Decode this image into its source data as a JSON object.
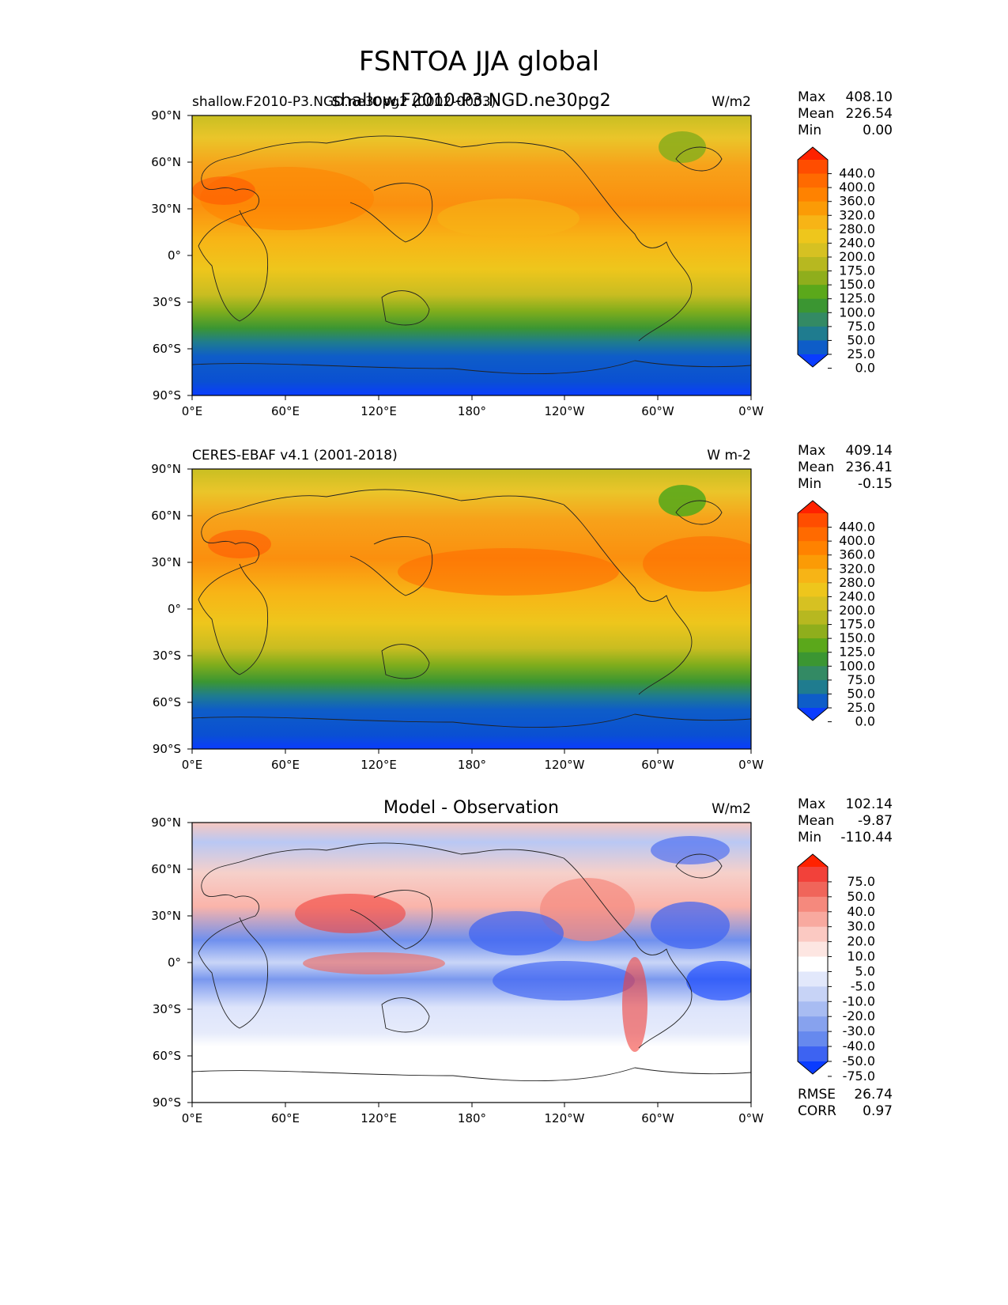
{
  "figure_title": "FSNTOA JJA global",
  "lat_ticks": [
    "90°N",
    "60°N",
    "30°N",
    "0°",
    "30°S",
    "60°S",
    "90°S"
  ],
  "lon_ticks": [
    "0°E",
    "60°E",
    "120°E",
    "180°",
    "120°W",
    "60°W",
    "0°W"
  ],
  "panels": [
    {
      "id": "model",
      "title_left": "shallow.F2010-P3.NGD.ne30pg2 (0002-0003)",
      "title_center": "shallow.F2010-P3.NGD.ne30pg2",
      "units": "W/m2",
      "stats": [
        {
          "label": "Max",
          "value": "408.10"
        },
        {
          "label": "Mean",
          "value": "226.54"
        },
        {
          "label": "Min",
          "value": "0.00"
        }
      ],
      "colorbar": {
        "levels": [
          "440.0",
          "400.0",
          "360.0",
          "320.0",
          "280.0",
          "240.0",
          "200.0",
          "175.0",
          "150.0",
          "125.0",
          "100.0",
          "75.0",
          "50.0",
          "25.0",
          "0.0"
        ],
        "colors": [
          "#ff2200",
          "#ff4d00",
          "#ff6a00",
          "#ff8200",
          "#fb9b06",
          "#f7b416",
          "#eec61c",
          "#d6c122",
          "#b7b820",
          "#8fae1c",
          "#5ba81b",
          "#3b9632",
          "#338a64",
          "#1f7c8f",
          "#0e5dc8",
          "#0a3cff"
        ]
      }
    },
    {
      "id": "obs",
      "title_left": "CERES-EBAF v4.1 (2001-2018)",
      "title_center": "",
      "units": "W m-2",
      "stats": [
        {
          "label": "Max",
          "value": "409.14"
        },
        {
          "label": "Mean",
          "value": "236.41"
        },
        {
          "label": "Min",
          "value": "-0.15"
        }
      ],
      "colorbar": {
        "levels": [
          "440.0",
          "400.0",
          "360.0",
          "320.0",
          "280.0",
          "240.0",
          "200.0",
          "175.0",
          "150.0",
          "125.0",
          "100.0",
          "75.0",
          "50.0",
          "25.0",
          "0.0"
        ],
        "colors": [
          "#ff2200",
          "#ff4d00",
          "#ff6a00",
          "#ff8200",
          "#fb9b06",
          "#f7b416",
          "#eec61c",
          "#d6c122",
          "#b7b820",
          "#8fae1c",
          "#5ba81b",
          "#3b9632",
          "#338a64",
          "#1f7c8f",
          "#0e5dc8",
          "#0a3cff"
        ]
      }
    },
    {
      "id": "diff",
      "title_left": "",
      "title_center": "Model - Observation",
      "units": "W/m2",
      "stats": [
        {
          "label": "Max",
          "value": "102.14"
        },
        {
          "label": "Mean",
          "value": "-9.87"
        },
        {
          "label": "Min",
          "value": "-110.44"
        }
      ],
      "extra_stats": [
        {
          "label": "RMSE",
          "value": "26.74"
        },
        {
          "label": "CORR",
          "value": "0.97"
        }
      ],
      "colorbar": {
        "levels": [
          "75.0",
          "50.0",
          "40.0",
          "30.0",
          "20.0",
          "10.0",
          "5.0",
          "-5.0",
          "-10.0",
          "-20.0",
          "-30.0",
          "-40.0",
          "-50.0",
          "-75.0"
        ],
        "colors": [
          "#ff2200",
          "#f2413a",
          "#f0655a",
          "#f5897d",
          "#f8a99f",
          "#fbc9c2",
          "#fde6e2",
          "#ffffff",
          "#e2e8fb",
          "#c7d3f6",
          "#a8bcf2",
          "#87a2ee",
          "#6689ee",
          "#3d63f2",
          "#0a3cff"
        ]
      }
    }
  ]
}
